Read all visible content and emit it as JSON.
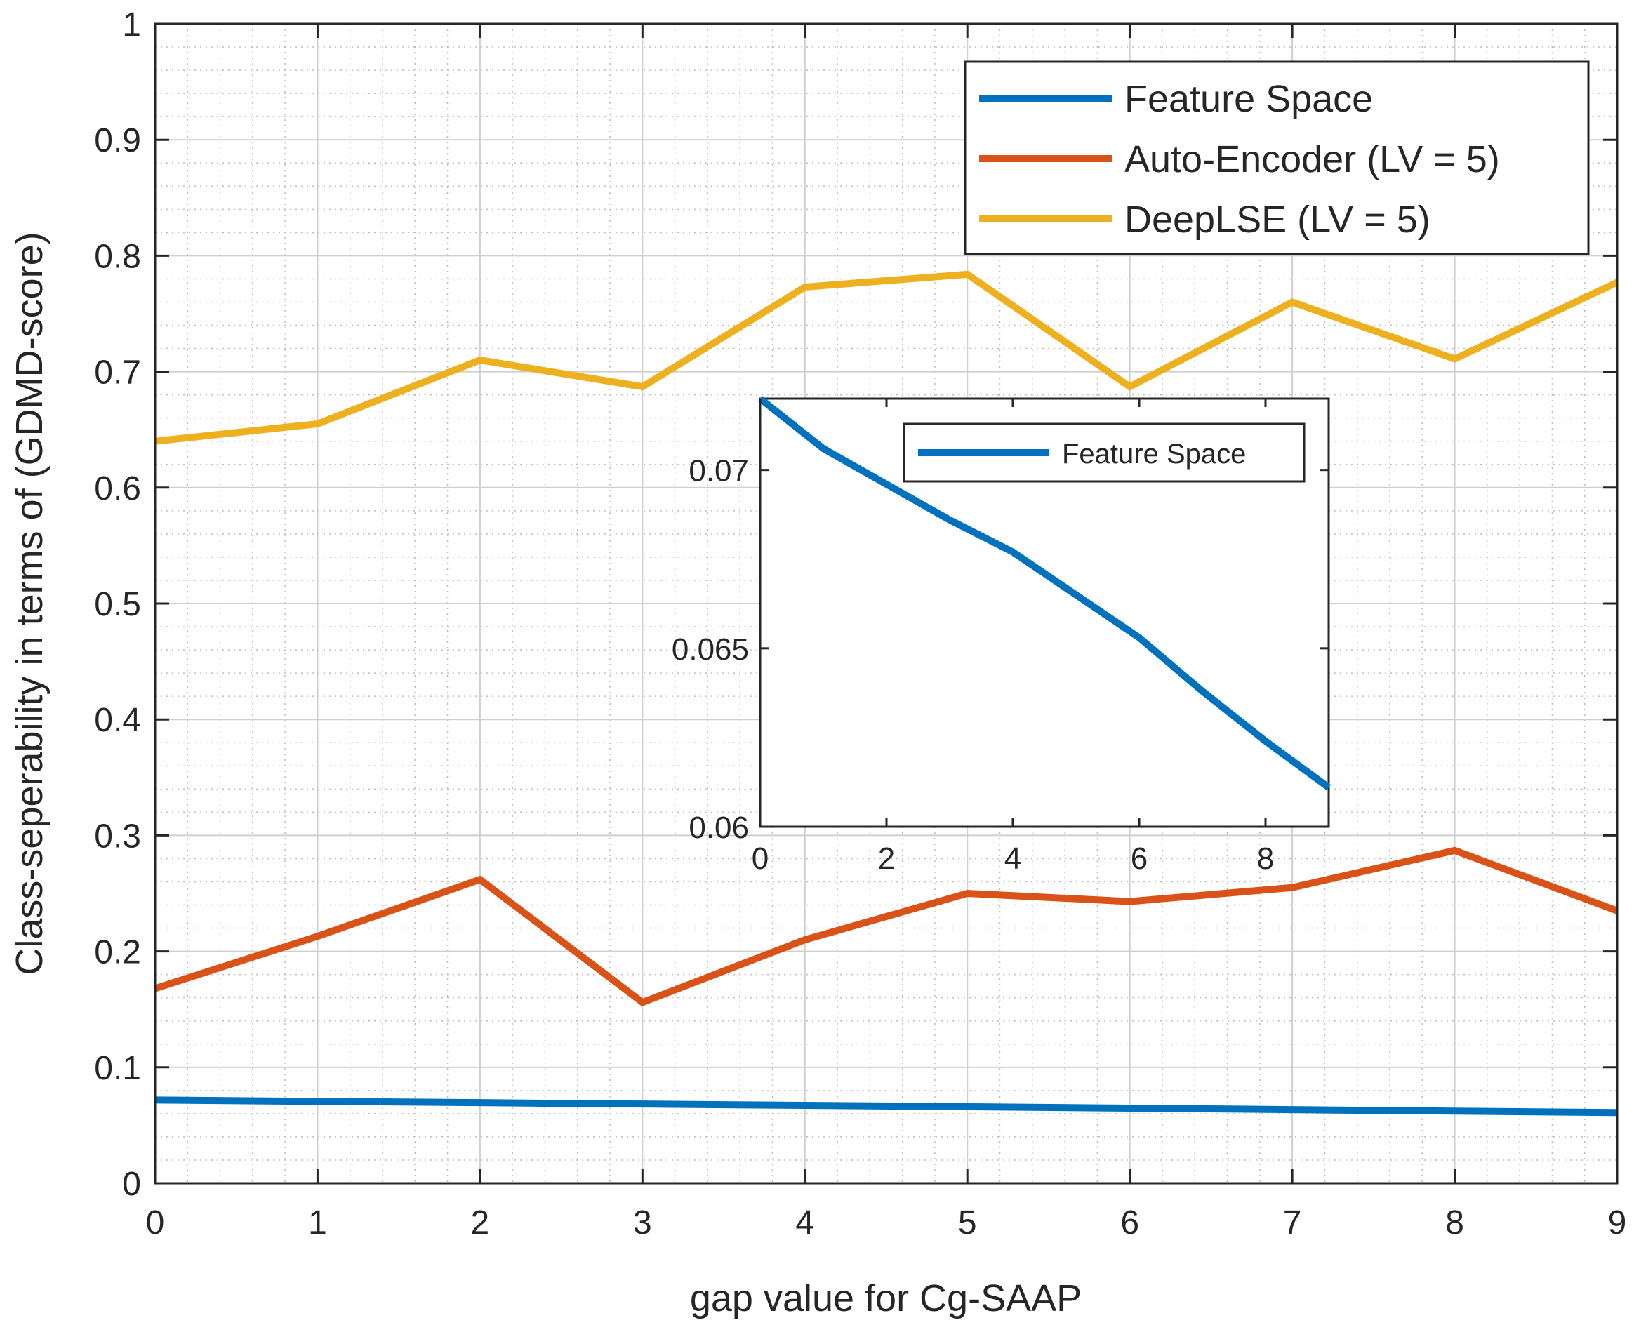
{
  "chart_data": [
    {
      "type": "line",
      "xlabel": "gap value for Cg-SAAP",
      "ylabel": "Class-seperability in terms of (GDMD-score)",
      "xlim": [
        0,
        9
      ],
      "ylim": [
        0,
        1
      ],
      "xticks": [
        0,
        1,
        2,
        3,
        4,
        5,
        6,
        7,
        8,
        9
      ],
      "yticks": [
        0,
        0.1,
        0.2,
        0.3,
        0.4,
        0.5,
        0.6,
        0.7,
        0.8,
        0.9,
        1
      ],
      "xtick_labels": [
        "0",
        "1",
        "2",
        "3",
        "4",
        "5",
        "6",
        "7",
        "8",
        "9"
      ],
      "ytick_labels": [
        "0",
        "0.1",
        "0.2",
        "0.3",
        "0.4",
        "0.5",
        "0.6",
        "0.7",
        "0.8",
        "0.9",
        "1"
      ],
      "grid": true,
      "minor_grid": true,
      "legend_position": "top-right",
      "x": [
        0,
        1,
        2,
        3,
        4,
        5,
        6,
        7,
        8,
        9
      ],
      "series": [
        {
          "name": "Feature Space",
          "color": "#0072BD",
          "values": [
            0.0718,
            0.0706,
            0.0695,
            0.0683,
            0.0672,
            0.066,
            0.0648,
            0.0635,
            0.0622,
            0.061
          ]
        },
        {
          "name": "Auto-Encoder (LV = 5)",
          "color": "#D95319",
          "values": [
            0.168,
            0.213,
            0.262,
            0.156,
            0.21,
            0.25,
            0.243,
            0.255,
            0.287,
            0.235
          ]
        },
        {
          "name": "DeepLSE (LV = 5)",
          "color": "#EDB120",
          "values": [
            0.64,
            0.655,
            0.71,
            0.687,
            0.773,
            0.784,
            0.687,
            0.76,
            0.711,
            0.777
          ]
        }
      ]
    },
    {
      "type": "line",
      "xlabel": "",
      "ylabel": "",
      "xlim": [
        0,
        9
      ],
      "ylim": [
        0.06,
        0.072
      ],
      "xticks": [
        0,
        2,
        4,
        6,
        8
      ],
      "yticks": [
        0.06,
        0.065,
        0.07
      ],
      "xtick_labels": [
        "0",
        "2",
        "4",
        "6",
        "8"
      ],
      "ytick_labels": [
        "0.06",
        "0.065",
        "0.07"
      ],
      "grid": false,
      "legend_position": "top-right",
      "x": [
        0,
        1,
        2,
        3,
        4,
        5,
        6,
        7,
        8,
        9
      ],
      "series": [
        {
          "name": "Feature Space",
          "color": "#0072BD",
          "values": [
            0.072,
            0.0706,
            0.0696,
            0.0686,
            0.0677,
            0.0665,
            0.0653,
            0.0638,
            0.0624,
            0.0611
          ]
        }
      ]
    }
  ]
}
